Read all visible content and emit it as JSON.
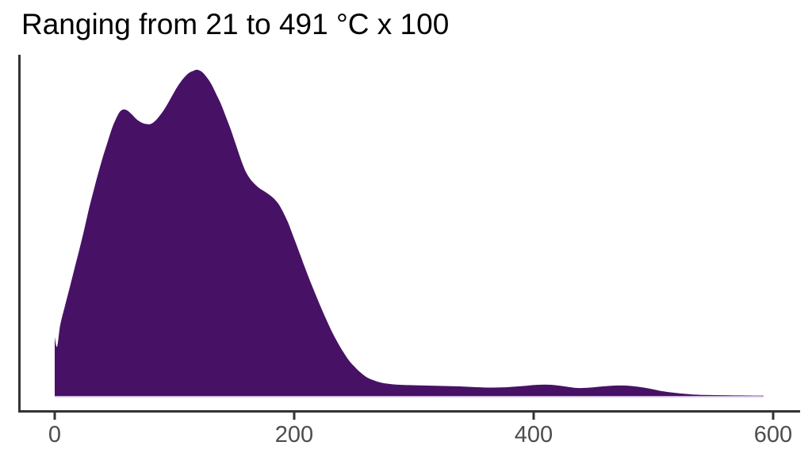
{
  "chart_data": {
    "type": "area",
    "subtype": "density",
    "title": "Ranging from 21 to 491 °C x 100",
    "xlabel": "",
    "ylabel": "",
    "x_range": [
      0,
      600
    ],
    "grid": false,
    "legend": false,
    "y_axis_labels_shown": false,
    "x_ticks": [
      {
        "value": 0,
        "label": "0"
      },
      {
        "value": 200,
        "label": "200"
      },
      {
        "value": 400,
        "label": "400"
      },
      {
        "value": 600,
        "label": "600"
      }
    ],
    "colors": {
      "fill": "#471265",
      "baseline_outline": "#c9b2dd",
      "axis_line": "#333333",
      "tick_label": "#4d4d4d",
      "title": "#000000",
      "background": "#ffffff"
    },
    "density_normalized_to_peak": true,
    "points": [
      [
        0,
        0.18
      ],
      [
        2,
        0.151
      ],
      [
        4.6,
        0.217
      ],
      [
        8.6,
        0.277
      ],
      [
        12.6,
        0.333
      ],
      [
        16.6,
        0.392
      ],
      [
        20.5,
        0.448
      ],
      [
        24.5,
        0.508
      ],
      [
        28.5,
        0.572
      ],
      [
        32.5,
        0.63
      ],
      [
        36.4,
        0.684
      ],
      [
        40.4,
        0.735
      ],
      [
        44.4,
        0.781
      ],
      [
        48.3,
        0.825
      ],
      [
        51.7,
        0.854
      ],
      [
        54.3,
        0.871
      ],
      [
        57,
        0.878
      ],
      [
        60.3,
        0.876
      ],
      [
        64.2,
        0.864
      ],
      [
        68.2,
        0.849
      ],
      [
        72.2,
        0.839
      ],
      [
        76.2,
        0.834
      ],
      [
        80.1,
        0.834
      ],
      [
        84.1,
        0.844
      ],
      [
        88.7,
        0.864
      ],
      [
        93.4,
        0.89
      ],
      [
        98,
        0.92
      ],
      [
        102.6,
        0.949
      ],
      [
        107.3,
        0.973
      ],
      [
        111.9,
        0.99
      ],
      [
        115.9,
        0.997
      ],
      [
        119.2,
        1.0
      ],
      [
        123.2,
        0.993
      ],
      [
        127.2,
        0.976
      ],
      [
        131.1,
        0.954
      ],
      [
        135.1,
        0.924
      ],
      [
        139.1,
        0.893
      ],
      [
        143,
        0.856
      ],
      [
        147,
        0.817
      ],
      [
        151,
        0.774
      ],
      [
        155,
        0.73
      ],
      [
        158.9,
        0.693
      ],
      [
        162.9,
        0.667
      ],
      [
        166.9,
        0.65
      ],
      [
        170.9,
        0.637
      ],
      [
        174.8,
        0.628
      ],
      [
        178.8,
        0.618
      ],
      [
        182.8,
        0.606
      ],
      [
        186.8,
        0.589
      ],
      [
        190.7,
        0.564
      ],
      [
        194.7,
        0.533
      ],
      [
        199.3,
        0.489
      ],
      [
        204,
        0.443
      ],
      [
        208.6,
        0.397
      ],
      [
        213.2,
        0.353
      ],
      [
        217.9,
        0.311
      ],
      [
        222.5,
        0.27
      ],
      [
        227.2,
        0.231
      ],
      [
        231.8,
        0.195
      ],
      [
        236.4,
        0.163
      ],
      [
        241.1,
        0.134
      ],
      [
        245.7,
        0.109
      ],
      [
        250.3,
        0.09
      ],
      [
        255,
        0.073
      ],
      [
        260.3,
        0.058
      ],
      [
        265.6,
        0.049
      ],
      [
        272.2,
        0.041
      ],
      [
        280.1,
        0.0365
      ],
      [
        288.7,
        0.034
      ],
      [
        298.7,
        0.0328
      ],
      [
        311.9,
        0.0316
      ],
      [
        325.2,
        0.0304
      ],
      [
        338.4,
        0.0292
      ],
      [
        351.7,
        0.0268
      ],
      [
        364.9,
        0.0255
      ],
      [
        378.1,
        0.0268
      ],
      [
        391.4,
        0.0304
      ],
      [
        403.3,
        0.0341
      ],
      [
        414.6,
        0.0341
      ],
      [
        425.8,
        0.0292
      ],
      [
        436.4,
        0.0243
      ],
      [
        447,
        0.0255
      ],
      [
        457.6,
        0.0292
      ],
      [
        467.5,
        0.0316
      ],
      [
        477.5,
        0.0316
      ],
      [
        487.4,
        0.028
      ],
      [
        497.4,
        0.0219
      ],
      [
        507.3,
        0.0146
      ],
      [
        517.2,
        0.0097
      ],
      [
        527.2,
        0.0061
      ],
      [
        537.1,
        0.0036
      ],
      [
        550.3,
        0.0024
      ],
      [
        563.6,
        0.0017
      ],
      [
        576.8,
        0.0012
      ],
      [
        592,
        0.001
      ]
    ]
  }
}
